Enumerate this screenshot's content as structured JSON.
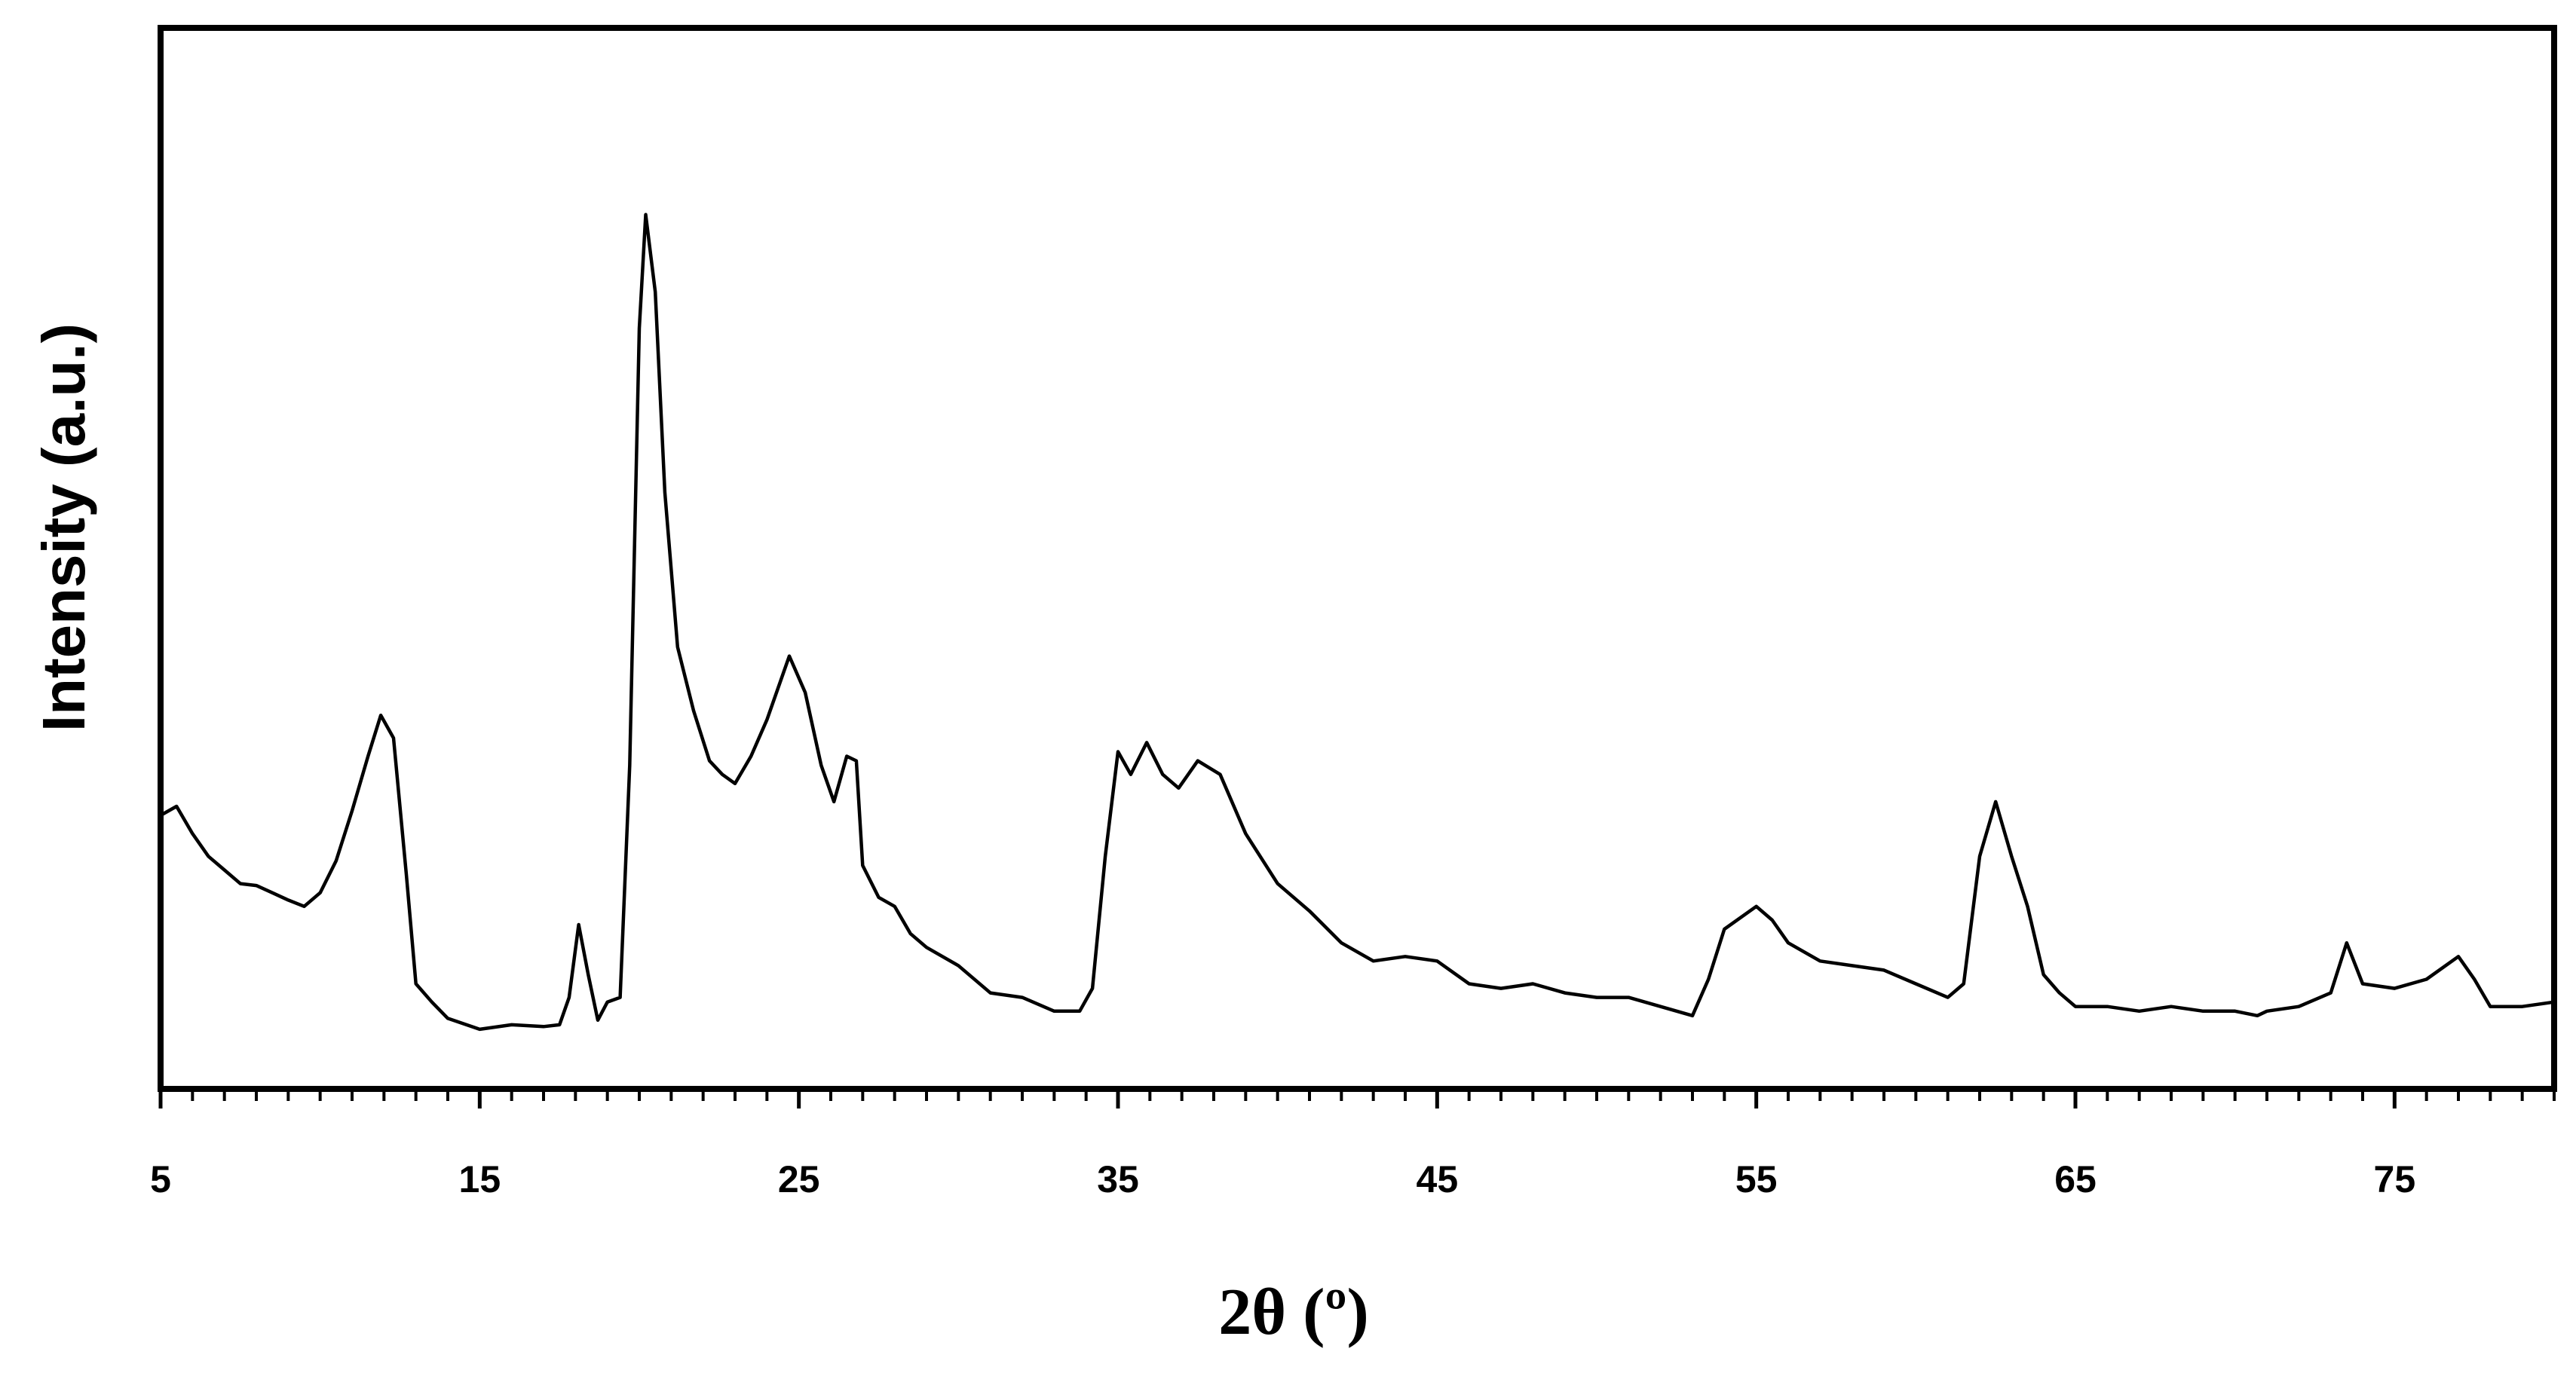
{
  "chart_data": {
    "type": "line",
    "xlabel": "2θ (º)",
    "ylabel": "Intensity (a.u.)",
    "xlim": [
      5,
      80
    ],
    "ylim": [
      0,
      100
    ],
    "grid": false,
    "legend": "none",
    "x_ticks": [
      5,
      15,
      25,
      35,
      45,
      55,
      65,
      75
    ],
    "x_minor_step": 1,
    "y_ticks_shown": false,
    "colors": {
      "line": "#000000",
      "frame": "#000000",
      "background": "#ffffff"
    },
    "series": [
      {
        "points": [
          [
            5.0,
            24.5
          ],
          [
            5.5,
            25.5
          ],
          [
            6.0,
            22.5
          ],
          [
            6.5,
            20.0
          ],
          [
            7.0,
            18.5
          ],
          [
            7.5,
            17.0
          ],
          [
            8.0,
            16.8
          ],
          [
            8.5,
            16.0
          ],
          [
            9.0,
            15.2
          ],
          [
            9.5,
            14.5
          ],
          [
            10.0,
            16.0
          ],
          [
            10.5,
            19.5
          ],
          [
            11.0,
            25.0
          ],
          [
            11.5,
            31.0
          ],
          [
            11.9,
            35.5
          ],
          [
            12.3,
            33.0
          ],
          [
            12.7,
            18.0
          ],
          [
            13.0,
            6.0
          ],
          [
            13.5,
            4.0
          ],
          [
            14.0,
            2.2
          ],
          [
            15.0,
            1.0
          ],
          [
            16.0,
            1.5
          ],
          [
            17.0,
            1.3
          ],
          [
            17.5,
            1.5
          ],
          [
            17.8,
            4.5
          ],
          [
            18.1,
            12.5
          ],
          [
            18.4,
            7.0
          ],
          [
            18.7,
            2.0
          ],
          [
            19.0,
            4.0
          ],
          [
            19.4,
            4.5
          ],
          [
            19.7,
            30.0
          ],
          [
            20.0,
            78.0
          ],
          [
            20.2,
            90.5
          ],
          [
            20.5,
            82.0
          ],
          [
            20.8,
            60.0
          ],
          [
            21.2,
            43.0
          ],
          [
            21.7,
            36.0
          ],
          [
            22.2,
            30.5
          ],
          [
            22.6,
            29.0
          ],
          [
            23.0,
            28.0
          ],
          [
            23.5,
            31.0
          ],
          [
            24.0,
            35.0
          ],
          [
            24.7,
            42.0
          ],
          [
            25.2,
            38.0
          ],
          [
            25.7,
            30.0
          ],
          [
            26.1,
            26.0
          ],
          [
            26.5,
            31.0
          ],
          [
            26.8,
            30.5
          ],
          [
            27.0,
            19.0
          ],
          [
            27.5,
            15.5
          ],
          [
            28.0,
            14.5
          ],
          [
            28.5,
            11.5
          ],
          [
            29.0,
            10.0
          ],
          [
            30.0,
            8.0
          ],
          [
            31.0,
            5.0
          ],
          [
            32.0,
            4.5
          ],
          [
            33.0,
            3.0
          ],
          [
            33.8,
            3.0
          ],
          [
            34.2,
            5.5
          ],
          [
            34.6,
            20.0
          ],
          [
            35.0,
            31.5
          ],
          [
            35.4,
            29.0
          ],
          [
            35.9,
            32.5
          ],
          [
            36.4,
            29.0
          ],
          [
            36.9,
            27.5
          ],
          [
            37.5,
            30.5
          ],
          [
            38.2,
            29.0
          ],
          [
            39.0,
            22.5
          ],
          [
            40.0,
            17.0
          ],
          [
            41.0,
            14.0
          ],
          [
            42.0,
            10.5
          ],
          [
            43.0,
            8.5
          ],
          [
            44.0,
            9.0
          ],
          [
            45.0,
            8.5
          ],
          [
            46.0,
            6.0
          ],
          [
            47.0,
            5.5
          ],
          [
            48.0,
            6.0
          ],
          [
            49.0,
            5.0
          ],
          [
            50.0,
            4.5
          ],
          [
            51.0,
            4.5
          ],
          [
            52.0,
            3.5
          ],
          [
            53.0,
            2.5
          ],
          [
            53.5,
            6.5
          ],
          [
            54.0,
            12.0
          ],
          [
            55.0,
            14.5
          ],
          [
            55.5,
            13.0
          ],
          [
            56.0,
            10.5
          ],
          [
            57.0,
            8.5
          ],
          [
            58.0,
            8.0
          ],
          [
            59.0,
            7.5
          ],
          [
            60.0,
            6.0
          ],
          [
            61.0,
            4.5
          ],
          [
            61.5,
            6.0
          ],
          [
            62.0,
            20.0
          ],
          [
            62.5,
            26.0
          ],
          [
            63.0,
            20.0
          ],
          [
            63.5,
            14.5
          ],
          [
            64.0,
            7.0
          ],
          [
            64.5,
            5.0
          ],
          [
            65.0,
            3.5
          ],
          [
            66.0,
            3.5
          ],
          [
            67.0,
            3.0
          ],
          [
            68.0,
            3.5
          ],
          [
            69.0,
            3.0
          ],
          [
            70.0,
            3.0
          ],
          [
            70.7,
            2.5
          ],
          [
            71.0,
            3.0
          ],
          [
            72.0,
            3.5
          ],
          [
            73.0,
            5.0
          ],
          [
            73.5,
            10.5
          ],
          [
            74.0,
            6.0
          ],
          [
            75.0,
            5.5
          ],
          [
            76.0,
            6.5
          ],
          [
            77.0,
            9.0
          ],
          [
            77.5,
            6.5
          ],
          [
            78.0,
            3.5
          ],
          [
            79.0,
            3.5
          ],
          [
            80.0,
            4.0
          ]
        ]
      }
    ]
  }
}
